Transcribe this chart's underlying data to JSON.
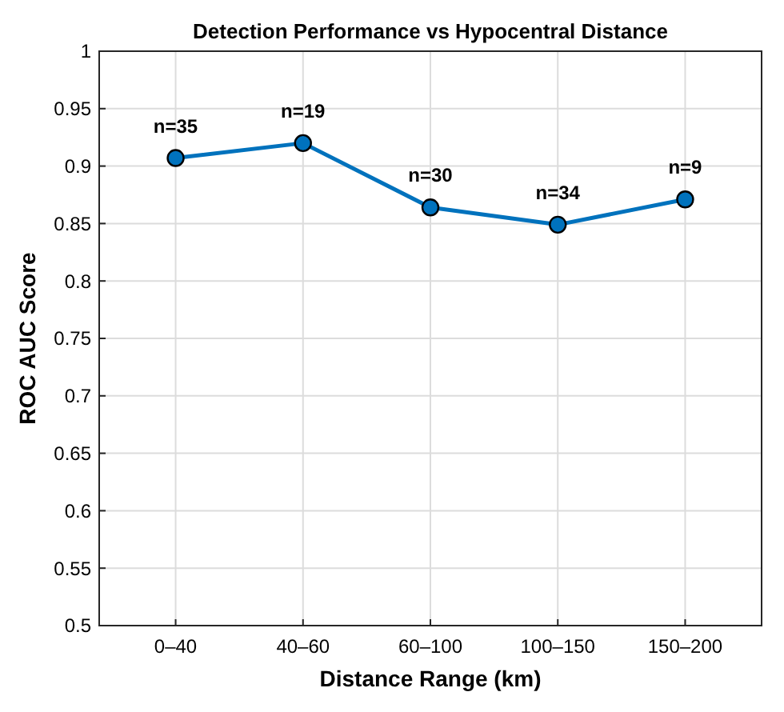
{
  "chart_data": {
    "type": "line",
    "title": "Detection Performance vs Hypocentral Distance",
    "xlabel": "Distance Range (km)",
    "ylabel": "ROC AUC Score",
    "categories": [
      "0–40",
      "40–60",
      "60–100",
      "100–150",
      "150–200"
    ],
    "series": [
      {
        "color": "#0072bd",
        "values": [
          0.907,
          0.92,
          0.864,
          0.849,
          0.871
        ]
      }
    ],
    "ylim": [
      0.5,
      1
    ],
    "yticks": [
      0.5,
      0.55,
      0.6,
      0.65,
      0.7,
      0.75,
      0.8,
      0.85,
      0.9,
      0.95,
      1
    ],
    "grid": true,
    "marker": "circle",
    "line_style": "solid",
    "annotations": [
      {
        "text": "n=35",
        "x": "0–40",
        "y": 0.907
      },
      {
        "text": "n=19",
        "x": "40–60",
        "y": 0.92
      },
      {
        "text": "n=30",
        "x": "60–100",
        "y": 0.864
      },
      {
        "text": "n=34",
        "x": "100–150",
        "y": 0.849
      },
      {
        "text": "n=9",
        "x": "150–200",
        "y": 0.871
      }
    ]
  }
}
